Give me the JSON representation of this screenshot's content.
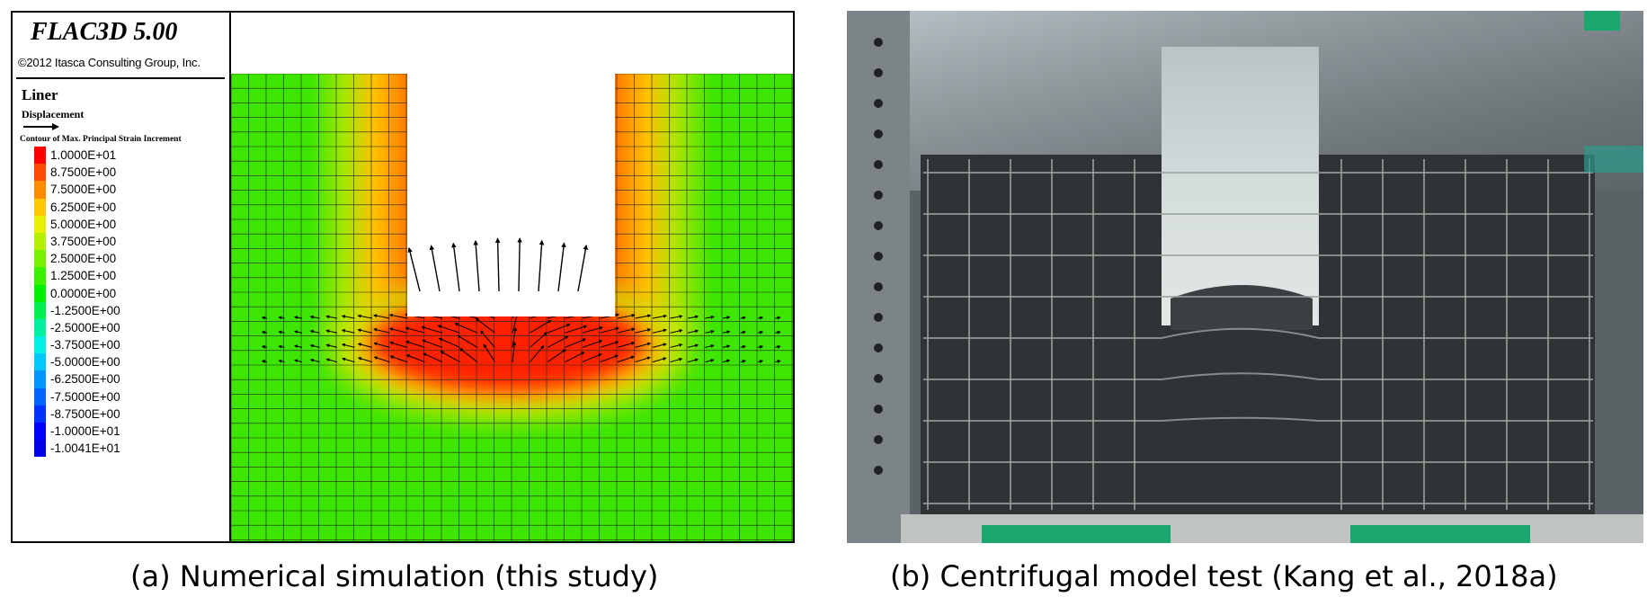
{
  "panel_a": {
    "software_title": "FLAC3D 5.00",
    "copyright": "©2012 Itasca Consulting Group, Inc.",
    "object_label": "Liner",
    "vector_label": "Displacement",
    "contour_label": "Contour of Max. Principal Strain Increment",
    "legend_values": [
      "1.0000E+01",
      "8.7500E+00",
      "7.5000E+00",
      "6.2500E+00",
      "5.0000E+00",
      "3.7500E+00",
      "2.5000E+00",
      "1.2500E+00",
      "0.0000E+00",
      "-1.2500E+00",
      "-2.5000E+00",
      "-3.7500E+00",
      "-5.0000E+00",
      "-6.2500E+00",
      "-7.5000E+00",
      "-8.7500E+00",
      "-1.0000E+01",
      "-1.0041E+01"
    ],
    "legend_colors": [
      "#ff0000",
      "#ff4a00",
      "#ff8c00",
      "#ffc800",
      "#e6f000",
      "#b4f000",
      "#78f000",
      "#3cf000",
      "#00f000",
      "#00f050",
      "#00f0a0",
      "#00f0e6",
      "#00c8ff",
      "#0096ff",
      "#0064ff",
      "#0032ff",
      "#0000ff",
      "#0000e6"
    ]
  },
  "captions": {
    "a": "(a) Numerical simulation (this study)",
    "b": "(b) Centrifugal model test (Kang et al., 2018a)"
  }
}
